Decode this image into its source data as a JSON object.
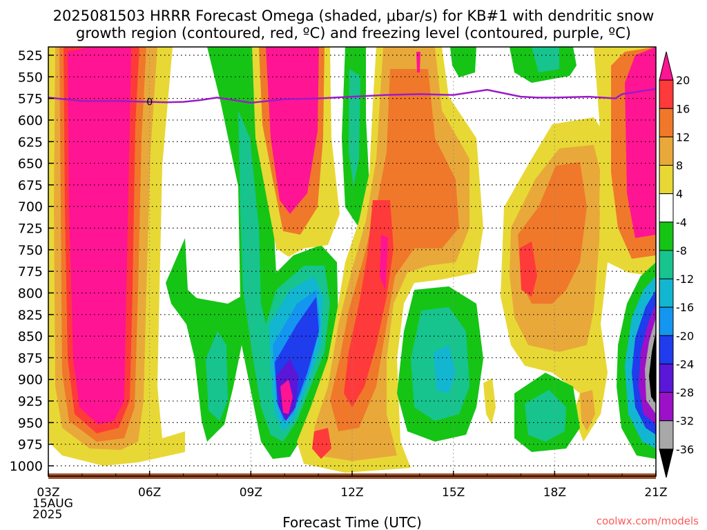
{
  "title_line1": "2025081503 HRRR Forecast Omega (shaded, μbar/s) for KB#1 with dendritic snow",
  "title_line2": "growth region (contoured, red, ºC) and freezing level (contoured, purple, ºC)",
  "credit": "coolwx.com/models",
  "chart_data": {
    "type": "heatmap",
    "title": "2025081503 HRRR Forecast Omega (shaded, μbar/s) for KB#1 with dendritic snow growth region (contoured, red, ºC) and freezing level (contoured, purple, ºC)",
    "xlabel": "Forecast Time (UTC)",
    "ylabel": "",
    "x_ticks": [
      "03Z",
      "06Z",
      "09Z",
      "12Z",
      "15Z",
      "18Z",
      "21Z"
    ],
    "x_start_label": [
      "03Z",
      "15AUG",
      "2025"
    ],
    "x_range_hours": [
      3,
      21
    ],
    "y_ticks": [
      525,
      550,
      575,
      600,
      625,
      650,
      675,
      700,
      725,
      750,
      775,
      800,
      825,
      850,
      875,
      900,
      925,
      950,
      975,
      1000
    ],
    "y_range_hpa": [
      1012,
      512
    ],
    "grid": true,
    "colorbar_labels": [
      "20",
      "16",
      "12",
      "8",
      "4",
      "-4",
      "-8",
      "-12",
      "-16",
      "-20",
      "-24",
      "-28",
      "-32",
      "-36"
    ],
    "colorbar_colors": [
      "#ff1493",
      "#ff3a3a",
      "#f0782a",
      "#e8a93a",
      "#e8d835",
      "#ffffff",
      "#16c416",
      "#17c48e",
      "#13b6d0",
      "#1496f0",
      "#1f3ced",
      "#5a17d8",
      "#9b11c8",
      "#a8a8a8",
      "#000000"
    ],
    "freezing_level": {
      "label": "0",
      "color": "#9b1bc8",
      "x_hours": [
        3,
        4,
        5,
        6,
        6.5,
        7,
        7.5,
        8,
        8.5,
        9,
        9.5,
        10,
        11,
        12,
        13,
        14,
        15,
        15.5,
        16,
        16.5,
        17,
        17.5,
        18,
        19,
        19.8,
        20,
        21
      ],
      "pressure_hpa": [
        574,
        578,
        578,
        579,
        579.5,
        579,
        577,
        574,
        577,
        580,
        578,
        576,
        575,
        573,
        571,
        570,
        571,
        568,
        565,
        569,
        573,
        574,
        574,
        573,
        575,
        570,
        564
      ]
    },
    "omega_fields": [
      {
        "name": "pos_a",
        "x_hours": [
          3.0,
          3.5,
          4.1,
          4.7,
          5.2,
          5.5,
          5.6,
          5.4,
          5.0,
          4.4,
          3.8,
          3.3,
          3.0,
          2.9
        ],
        "pressure_hpa": [
          522,
          522,
          522,
          525,
          545,
          620,
          760,
          900,
          970,
          988,
          988,
          975,
          850,
          650
        ],
        "level": 4
      },
      {
        "name": "pos_a_8",
        "x_hours": [
          3.1,
          3.6,
          4.1,
          4.6,
          5.0,
          5.3,
          5.3,
          5.0,
          4.6,
          4.0,
          3.5,
          3.1,
          3.0
        ],
        "pressure_hpa": [
          522,
          522,
          522,
          530,
          560,
          650,
          800,
          920,
          965,
          972,
          965,
          930,
          650
        ],
        "level": 8
      },
      {
        "name": "pos_a_20",
        "x_hours": [
          3.4,
          3.9,
          4.4,
          4.8,
          5.1,
          5.0,
          4.6,
          4.1,
          3.6,
          3.3,
          3.2
        ],
        "pressure_hpa": [
          530,
          522,
          522,
          540,
          600,
          800,
          920,
          950,
          930,
          800,
          600
        ],
        "level": 20
      }
    ]
  }
}
